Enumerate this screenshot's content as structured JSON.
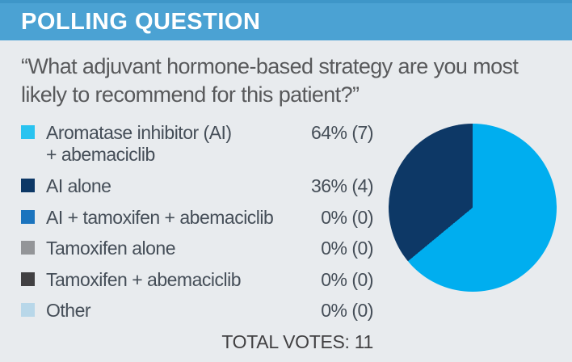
{
  "header": {
    "title": "POLLING QUESTION",
    "bg_color": "#4BA2D3",
    "text_color": "#FFFFFF"
  },
  "question": "“What adjuvant hormone-based strategy are you most\nlikely to recommend for this patient?”",
  "poll": {
    "options": [
      {
        "label": "Aromatase inhibitor (AI)\n+ abemaciclib",
        "value_label": "64% (7)",
        "percent": 64,
        "votes": 7,
        "color": "#29C3F0"
      },
      {
        "label": "AI alone",
        "value_label": "36% (4)",
        "percent": 36,
        "votes": 4,
        "color": "#0D3866"
      },
      {
        "label": "AI + tamoxifen + abemaciclib",
        "value_label": "0% (0)",
        "percent": 0,
        "votes": 0,
        "color": "#1B74BE"
      },
      {
        "label": "Tamoxifen alone",
        "value_label": "0% (0)",
        "percent": 0,
        "votes": 0,
        "color": "#939598"
      },
      {
        "label": "Tamoxifen + abemaciclib",
        "value_label": "0% (0)",
        "percent": 0,
        "votes": 0,
        "color": "#414042"
      },
      {
        "label": "Other",
        "value_label": "0% (0)",
        "percent": 0,
        "votes": 0,
        "color": "#B8D7E9"
      }
    ],
    "total_votes": 11,
    "total_votes_label": "TOTAL VOTES: 11"
  },
  "chart_data": {
    "type": "pie",
    "title": "Polling question results",
    "labels": [
      "Aromatase inhibitor (AI) + abemaciclib",
      "AI alone",
      "AI + tamoxifen + abemaciclib",
      "Tamoxifen alone",
      "Tamoxifen + abemaciclib",
      "Other"
    ],
    "values": [
      64,
      36,
      0,
      0,
      0,
      0
    ],
    "votes": [
      7,
      4,
      0,
      0,
      0,
      0
    ],
    "colors": [
      "#00AEEF",
      "#0D3866",
      "#1B74BE",
      "#939598",
      "#414042",
      "#B8D7E9"
    ],
    "start_angle_deg": 0,
    "direction": "clockwise",
    "legend_position": "left",
    "total": 11
  }
}
